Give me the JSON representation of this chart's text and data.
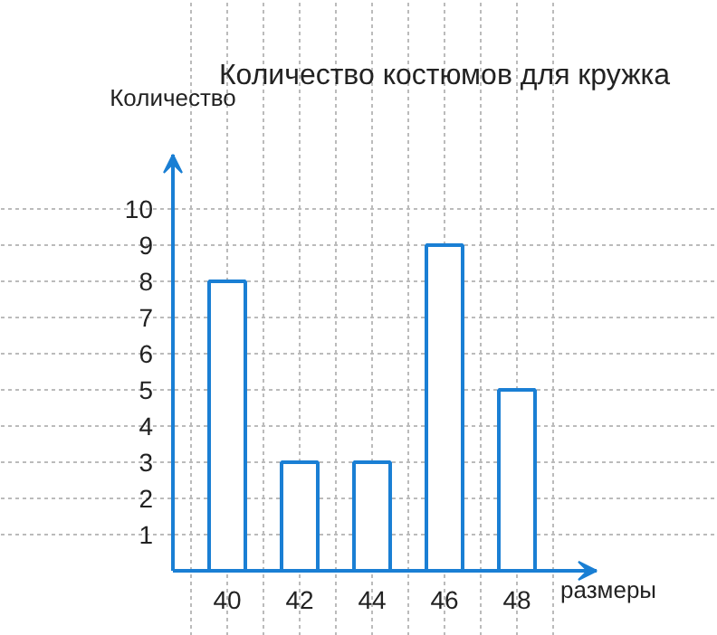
{
  "chart_data": {
    "type": "bar",
    "title": "Количество костюмов для кружка",
    "xlabel": "размеры",
    "ylabel": "Количество",
    "categories": [
      "40",
      "42",
      "44",
      "46",
      "48"
    ],
    "values": [
      8,
      3,
      3,
      9,
      5
    ],
    "color": "#1a7fd4",
    "ylim": [
      0,
      11.5
    ],
    "yticks": [
      1,
      2,
      3,
      4,
      5,
      6,
      7,
      8,
      9,
      10
    ],
    "grid": true
  }
}
